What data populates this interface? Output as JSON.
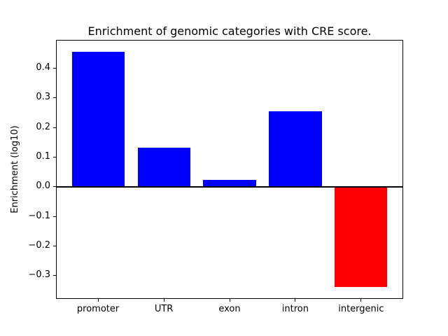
{
  "chart_data": {
    "type": "bar",
    "title": "Enrichment of genomic categories with CRE score.",
    "xlabel": "",
    "ylabel": "Enrichment (log10)",
    "categories": [
      "promoter",
      "UTR",
      "exon",
      "intron",
      "intergenic"
    ],
    "values": [
      0.456,
      0.133,
      0.024,
      0.254,
      -0.34
    ],
    "ylim": [
      -0.379,
      0.496
    ],
    "xlim": [
      -0.64,
      4.64
    ],
    "yticks": [
      0.4,
      0.3,
      0.2,
      0.1,
      0.0,
      -0.1,
      -0.2,
      -0.3
    ],
    "positive_color": "#0000ff",
    "negative_color": "#ff0000",
    "zero_line": true,
    "grid": false,
    "legend": "none",
    "background_color": "#ffffff",
    "axis_color": "#000000"
  }
}
